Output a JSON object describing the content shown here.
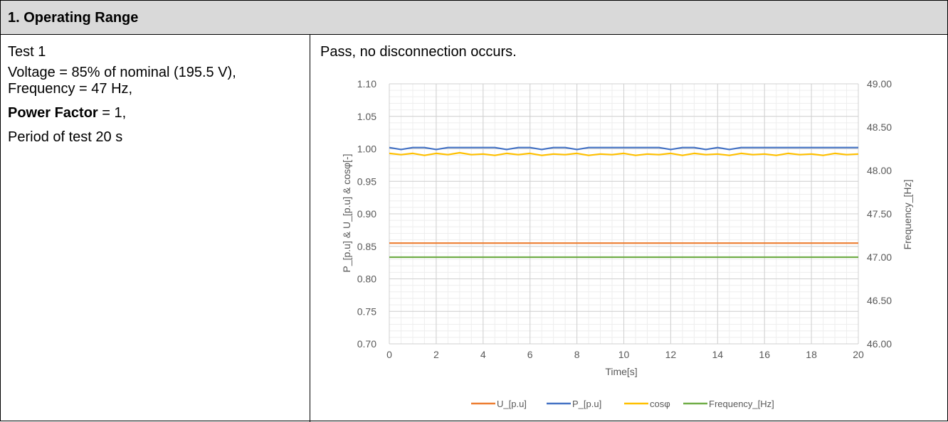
{
  "section": {
    "title": "1. Operating Range"
  },
  "test": {
    "name": "Test 1",
    "voltage_line": "Voltage = 85% of nominal (195.5 V),",
    "frequency_line": "Frequency = 47 Hz,",
    "pf_label": "Power Factor",
    "pf_value": " = 1,",
    "period_line": "Period of test 20 s"
  },
  "result": {
    "text": "Pass, no disconnection occurs."
  },
  "chart_data": {
    "type": "line",
    "xlabel": "Time[s]",
    "ylabel": "P_[p.u] & U_[p.u] & cosφ[-]",
    "y2label": "Frequency_[Hz]",
    "xlim": [
      0,
      20
    ],
    "ylim": [
      0.7,
      1.1
    ],
    "y2lim": [
      46.0,
      49.0
    ],
    "xticks": [
      0,
      2,
      4,
      6,
      8,
      10,
      12,
      14,
      16,
      18,
      20
    ],
    "yticks": [
      "0.70",
      "0.75",
      "0.80",
      "0.85",
      "0.90",
      "0.95",
      "1.00",
      "1.05",
      "1.10"
    ],
    "y2ticks": [
      "46.00",
      "46.50",
      "47.00",
      "47.50",
      "48.00",
      "48.50",
      "49.00"
    ],
    "grid": true,
    "legend_position": "bottom",
    "series": [
      {
        "name": "U_[p.u]",
        "axis": "left",
        "color": "#ed7d31",
        "x": [
          0,
          20
        ],
        "values": [
          0.855,
          0.855
        ]
      },
      {
        "name": "P_[p.u]",
        "axis": "left",
        "color": "#4472c4",
        "x": [
          0,
          0.5,
          1,
          1.5,
          2,
          2.5,
          3,
          3.5,
          4,
          4.5,
          5,
          5.5,
          6,
          6.5,
          7,
          7.5,
          8,
          8.5,
          9,
          9.5,
          10,
          10.5,
          11,
          11.5,
          12,
          12.5,
          13,
          13.5,
          14,
          14.5,
          15,
          15.5,
          16,
          16.5,
          17,
          17.5,
          18,
          18.5,
          19,
          19.5,
          20
        ],
        "values": [
          1.002,
          0.999,
          1.002,
          1.002,
          0.999,
          1.002,
          1.002,
          1.002,
          1.002,
          1.002,
          0.999,
          1.002,
          1.002,
          0.999,
          1.002,
          1.002,
          0.999,
          1.002,
          1.002,
          1.002,
          1.002,
          1.002,
          1.002,
          1.002,
          0.999,
          1.002,
          1.002,
          0.999,
          1.002,
          0.999,
          1.002,
          1.002,
          1.002,
          1.002,
          1.002,
          1.002,
          1.002,
          1.002,
          1.002,
          1.002,
          1.002
        ]
      },
      {
        "name": "cosφ",
        "axis": "left",
        "color": "#ffc000",
        "x": [
          0,
          0.5,
          1,
          1.5,
          2,
          2.5,
          3,
          3.5,
          4,
          4.5,
          5,
          5.5,
          6,
          6.5,
          7,
          7.5,
          8,
          8.5,
          9,
          9.5,
          10,
          10.5,
          11,
          11.5,
          12,
          12.5,
          13,
          13.5,
          14,
          14.5,
          15,
          15.5,
          16,
          16.5,
          17,
          17.5,
          18,
          18.5,
          19,
          19.5,
          20
        ],
        "values": [
          0.993,
          0.991,
          0.993,
          0.99,
          0.993,
          0.991,
          0.994,
          0.991,
          0.992,
          0.99,
          0.993,
          0.991,
          0.993,
          0.99,
          0.992,
          0.991,
          0.993,
          0.99,
          0.992,
          0.991,
          0.993,
          0.99,
          0.992,
          0.991,
          0.993,
          0.99,
          0.993,
          0.991,
          0.992,
          0.99,
          0.993,
          0.991,
          0.992,
          0.99,
          0.993,
          0.991,
          0.992,
          0.99,
          0.993,
          0.991,
          0.992
        ]
      },
      {
        "name": "Frequency_[Hz]",
        "axis": "right",
        "color": "#70ad47",
        "x": [
          0,
          20
        ],
        "values": [
          47.0,
          47.0
        ]
      }
    ]
  }
}
